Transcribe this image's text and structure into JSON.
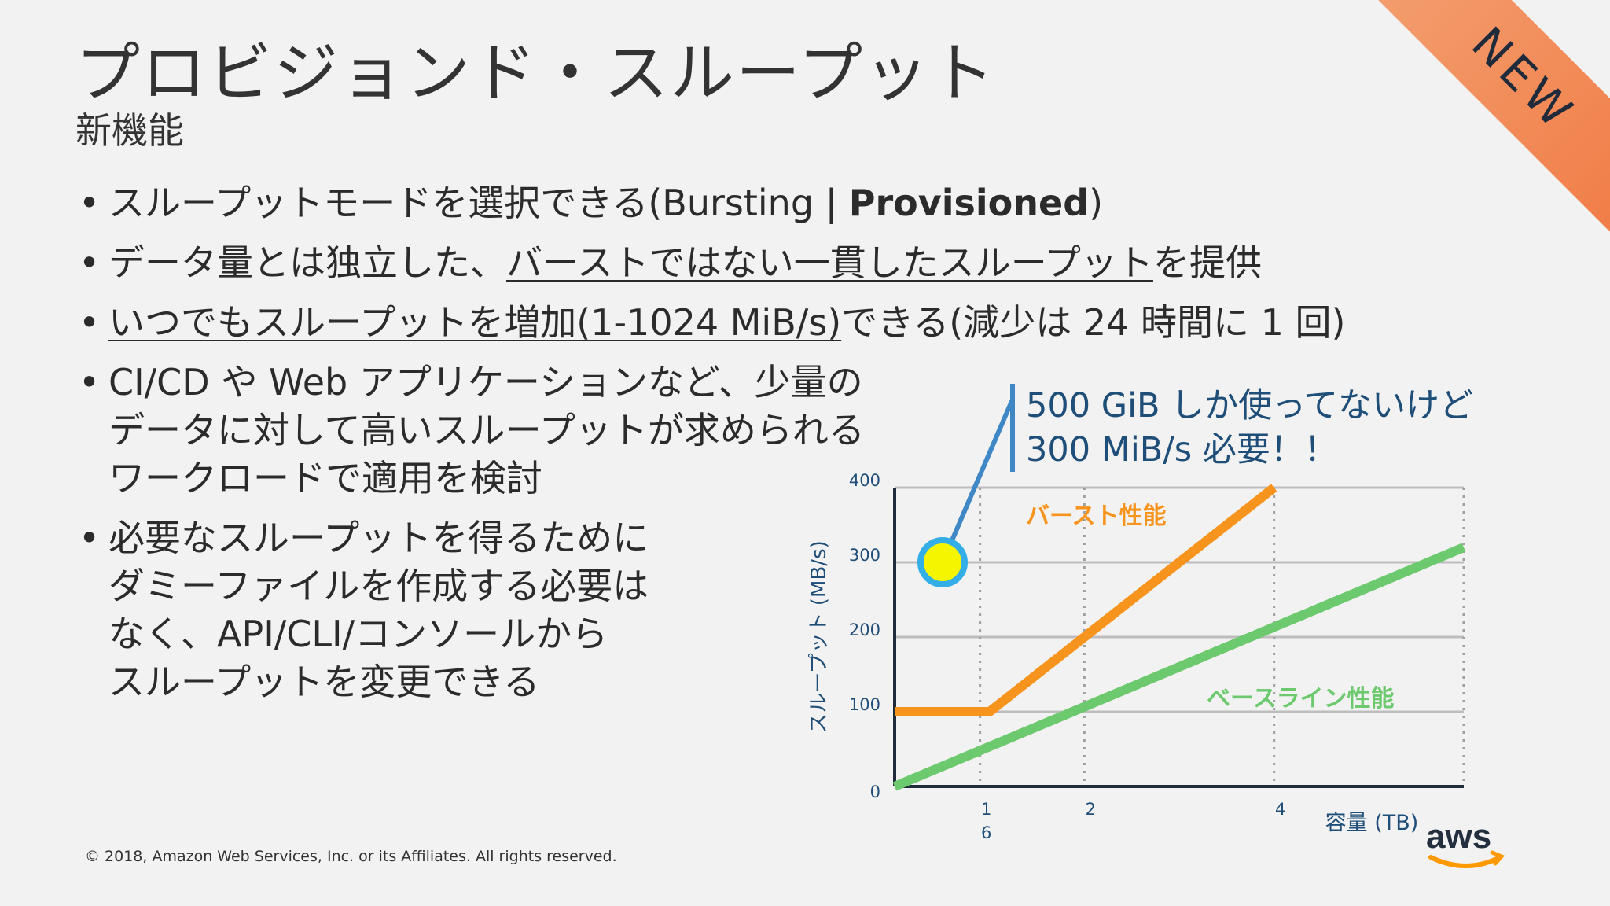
{
  "slide": {
    "title": "プロビジョンド・スループット",
    "subtitle": "新機能",
    "ribbon": "NEW",
    "bullets": {
      "b1_text": "スループットモードを選択できる(Bursting | ",
      "b1_bold": "Provisioned",
      "b1_end": ")",
      "b2_a": "データ量とは独立した、",
      "b2_u": "バーストではない一貫したスループット",
      "b2_b": "を提供",
      "b3_u": "いつでもスループットを増加(1-1024 MiB/s)",
      "b3_b": "できる(減少は 24 時間に 1 回)",
      "b4_l1": "CI/CD や Web アプリケーションなど、少量の",
      "b4_l2": "データに対して高いスループットが求められる",
      "b4_l3": "ワークロードで適用を検討",
      "b5_l1": "必要なスループットを得るために",
      "b5_l2": "ダミーファイルを作成する必要は",
      "b5_l3": "なく、API/CLI/コンソールから",
      "b5_l4": "スループットを変更できる"
    },
    "callout": {
      "line1": "500 GiB しか使ってないけど",
      "line2": "300 MiB/s 必要！！"
    },
    "copyright": "© 2018, Amazon Web Services, Inc. or its Affiliates. All rights reserved.",
    "logo_text": "aws"
  },
  "colors": {
    "burst": "#f7941d",
    "baseline": "#6cc96e",
    "marker_fill": "#f5f500",
    "marker_ring": "#33aee6",
    "axis_text": "#1f4e79",
    "callout_bar": "#3f88c5"
  },
  "chart_data": {
    "type": "line",
    "ylabel": "スループット (MB/s)",
    "xlabel": "容量 (TB)",
    "ylim": [
      0,
      400
    ],
    "yticks": [
      "400",
      "300",
      "200",
      "100",
      "0"
    ],
    "xticks": [
      {
        "x": 1,
        "label": "1"
      },
      {
        "x": 2,
        "label": "2"
      },
      {
        "x": 4,
        "label": "4"
      }
    ],
    "xtick_sub": "6",
    "series": [
      {
        "name": "バースト性能",
        "color": "#f7941d",
        "points": [
          [
            0,
            100
          ],
          [
            1,
            100
          ],
          [
            4,
            430
          ]
        ]
      },
      {
        "name": "ベースライン性能",
        "color": "#6cc96e",
        "points": [
          [
            0,
            0
          ],
          [
            6,
            320
          ]
        ]
      }
    ],
    "marker": {
      "x": 0.5,
      "y": 300
    },
    "grid": true
  }
}
